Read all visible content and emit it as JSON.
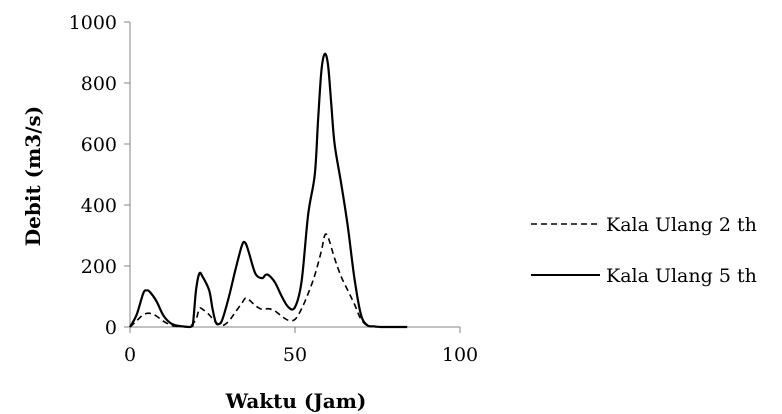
{
  "chart_data": {
    "type": "line",
    "title": "",
    "xlabel": "Waktu (Jam)",
    "ylabel": "Debit (m3/s)",
    "xlim": [
      0,
      100
    ],
    "ylim": [
      0,
      1000
    ],
    "x_ticks": [
      0,
      50,
      100
    ],
    "y_ticks": [
      0,
      200,
      400,
      600,
      800,
      1000
    ],
    "grid": false,
    "legend_position": "right",
    "series": [
      {
        "name": "Kala Ulang 2 th",
        "line_style": "dashed",
        "color": "#000000",
        "x": [
          0,
          2,
          4,
          6,
          8,
          10,
          12,
          14,
          16,
          18,
          20,
          21,
          22,
          24,
          26,
          28,
          30,
          32,
          34,
          35,
          36,
          38,
          40,
          42,
          44,
          46,
          48,
          50,
          52,
          54,
          56,
          58,
          59,
          60,
          62,
          64,
          66,
          68,
          70,
          72,
          74,
          76,
          78,
          80,
          82,
          84
        ],
        "y": [
          0,
          20,
          40,
          45,
          36,
          20,
          8,
          2,
          1,
          0,
          25,
          60,
          58,
          40,
          15,
          5,
          20,
          50,
          80,
          95,
          90,
          70,
          58,
          60,
          52,
          35,
          22,
          25,
          60,
          110,
          170,
          250,
          300,
          295,
          225,
          165,
          120,
          75,
          25,
          4,
          1,
          0,
          0,
          0,
          0,
          0
        ]
      },
      {
        "name": "Kala Ulang 5 th",
        "line_style": "solid",
        "color": "#000000",
        "x": [
          0,
          2,
          4,
          5,
          6,
          8,
          10,
          12,
          14,
          16,
          18,
          19,
          20,
          21,
          22,
          24,
          25,
          26,
          27,
          28,
          30,
          32,
          34,
          35,
          36,
          38,
          40,
          41,
          42,
          44,
          46,
          48,
          50,
          52,
          54,
          56,
          57,
          58,
          59,
          60,
          61,
          62,
          64,
          66,
          68,
          70,
          72,
          74,
          76,
          78,
          80,
          82,
          84
        ],
        "y": [
          0,
          40,
          110,
          120,
          115,
          85,
          40,
          15,
          5,
          2,
          0,
          5,
          120,
          175,
          165,
          120,
          60,
          15,
          10,
          25,
          100,
          190,
          270,
          275,
          245,
          175,
          160,
          170,
          170,
          145,
          100,
          65,
          65,
          150,
          370,
          500,
          680,
          840,
          895,
          860,
          730,
          600,
          470,
          330,
          160,
          40,
          5,
          2,
          0,
          0,
          0,
          0,
          0
        ]
      }
    ]
  }
}
